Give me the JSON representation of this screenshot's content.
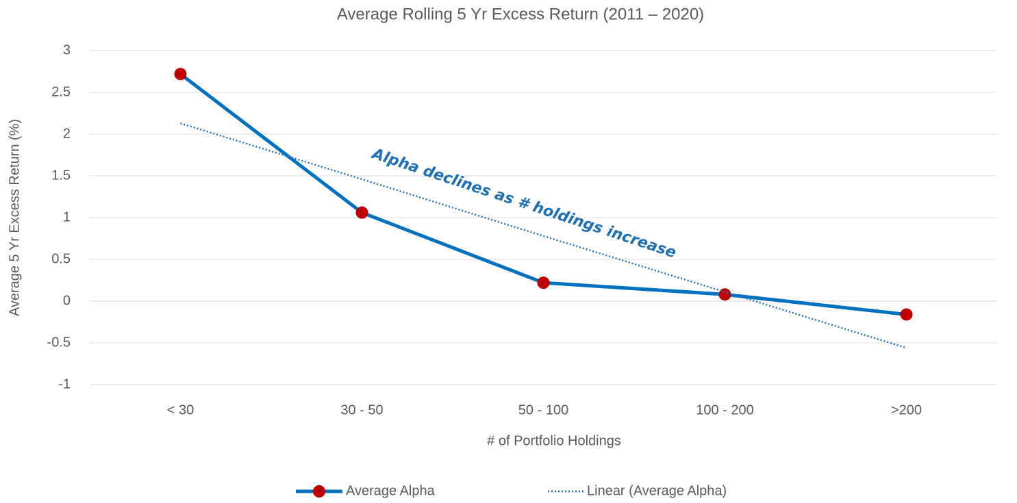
{
  "chart_data": {
    "type": "line",
    "title": "Average Rolling 5 Yr Excess Return (2011 – 2020)",
    "x_label": "# of Portfolio Holdings",
    "y_label": "Average 5 Yr Excess Return (%)",
    "annotation": "Alpha declines as # holdings increase",
    "annotation_color": "#1f6fb5",
    "categories": [
      "< 30",
      "30 - 50",
      "50 - 100",
      "100 - 200",
      ">200"
    ],
    "series": [
      {
        "name": "Average Alpha",
        "color": "#0070c0",
        "marker_color": "#c00000",
        "style": "solid",
        "values": [
          2.72,
          1.06,
          0.22,
          0.08,
          -0.16
        ]
      },
      {
        "name": "Linear (Average Alpha)",
        "color": "#1f6fb5",
        "style": "dotted",
        "values": [
          2.13,
          1.46,
          0.78,
          0.11,
          -0.56
        ]
      }
    ],
    "ylim": [
      -1,
      3
    ],
    "yticks": [
      3,
      2.5,
      2,
      1.5,
      1,
      0.5,
      0,
      -0.5,
      -1
    ],
    "grid": true,
    "legend": "bottom"
  }
}
